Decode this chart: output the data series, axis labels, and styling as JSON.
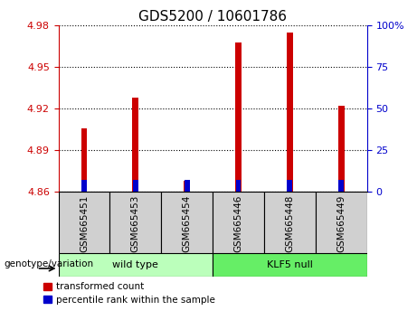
{
  "title": "GDS5200 / 10601786",
  "categories": [
    "GSM665451",
    "GSM665453",
    "GSM665454",
    "GSM665446",
    "GSM665448",
    "GSM665449"
  ],
  "red_values": [
    4.906,
    4.928,
    4.868,
    4.968,
    4.975,
    4.922
  ],
  "blue_values": [
    4.869,
    4.869,
    4.869,
    4.869,
    4.869,
    4.869
  ],
  "base": 4.86,
  "ylim_left": [
    4.86,
    4.98
  ],
  "ylim_right": [
    0,
    100
  ],
  "yticks_left": [
    4.86,
    4.89,
    4.92,
    4.95,
    4.98
  ],
  "yticks_right": [
    0,
    25,
    50,
    75,
    100
  ],
  "ytick_labels_right": [
    "0",
    "25",
    "50",
    "75",
    "100%"
  ],
  "red_color": "#cc0000",
  "blue_color": "#0000cc",
  "bar_width": 0.12,
  "wild_type_color": "#bbffbb",
  "klf5_null_color": "#66ee66",
  "xtick_bg": "#d0d0d0",
  "group_label": "genotype/variation",
  "legend_red": "transformed count",
  "legend_blue": "percentile rank within the sample",
  "title_fontsize": 11,
  "axis_label_color_left": "#cc0000",
  "axis_label_color_right": "#0000cc",
  "plot_bg": "#ffffff"
}
